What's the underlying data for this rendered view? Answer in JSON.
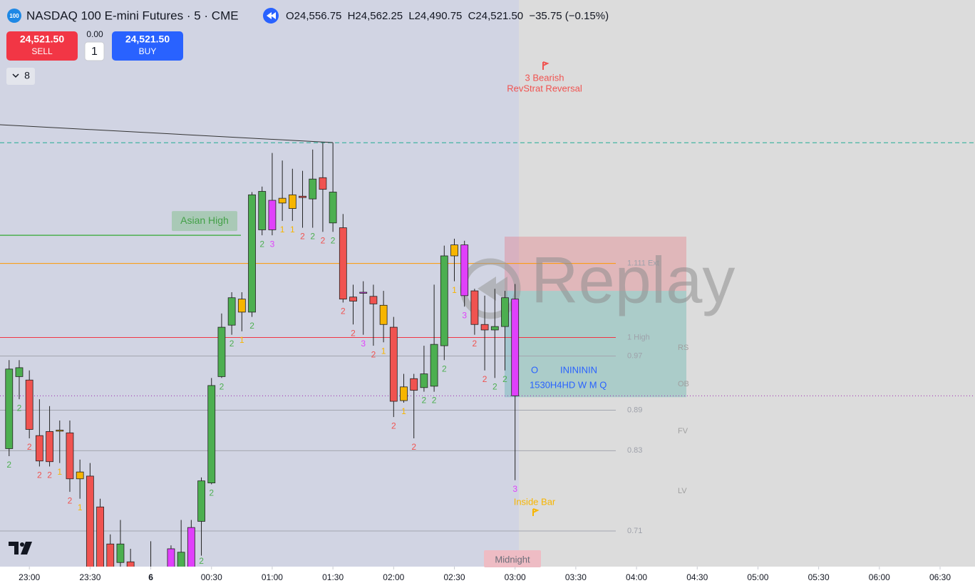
{
  "header": {
    "logo": "100",
    "title": "NASDAQ 100 E-mini Futures · 5 · CME",
    "ohlc": [
      {
        "key": "O",
        "value": "24,556.75"
      },
      {
        "key": "H",
        "value": "24,562.25"
      },
      {
        "key": "L",
        "value": "24,490.75"
      },
      {
        "key": "C",
        "value": "24,521.50"
      }
    ],
    "change": "−35.75 (−0.15%)"
  },
  "trade": {
    "sell_price": "24,521.50",
    "sell": "SELL",
    "spread": "0.00",
    "quantity": "1",
    "buy_price": "24,521.50",
    "buy": "BUY"
  },
  "indicators_count": "8",
  "watermark": "Replay",
  "chart_data": {
    "type": "candlestick",
    "open": [
      24502.25,
      24528.5,
      24527.25,
      24507.0,
      24508.5,
      24509.0,
      24508.0,
      24493.75,
      24492.25,
      24481.0,
      24467.5,
      24460.75,
      24461.0,
      24455.5,
      24452.75,
      24450.25,
      24458.0,
      24458.0,
      24458.0,
      24475.75,
      24489.75,
      24528.5,
      24547.25,
      24556.75,
      24552.0,
      24582.0,
      24592.75,
      24591.75,
      24589.75,
      24594.25,
      24593.25,
      24601.0,
      24584.5,
      24582.75,
      24557.5,
      24559.25,
      24557.75,
      24554.5,
      24546.5,
      24519.75,
      24527.75,
      24524.5,
      24525.0,
      24539.75,
      24572.5,
      24576.5,
      24559.75,
      24547.5,
      24545.5,
      24546.75,
      24556.75
    ],
    "high": [
      24534.5,
      24534.5,
      24530.75,
      24520.25,
      24517.75,
      24512.5,
      24512.5,
      24498.25,
      24497.0,
      24484.0,
      24471.0,
      24476.25,
      24465.75,
      24459.25,
      24468.5,
      24459.25,
      24467.0,
      24476.25,
      24476.25,
      24491.75,
      24528.0,
      24551.5,
      24559.25,
      24559.25,
      24595.75,
      24597.75,
      24610.0,
      24607.25,
      24604.25,
      24603.5,
      24611.25,
      24613.75,
      24613.75,
      24587.75,
      24562.0,
      24563.25,
      24562.0,
      24559.75,
      24550.25,
      24529.5,
      24529.5,
      24539.75,
      24562.0,
      24576.25,
      24578.75,
      24578.0,
      24560.5,
      24558.0,
      24560.5,
      24559.75,
      24562.25
    ],
    "low": [
      24499.5,
      24520.25,
      24506.0,
      24495.75,
      24495.75,
      24497.0,
      24486.5,
      24484.0,
      24455.5,
      24454.0,
      24454.0,
      24456.75,
      24455.5,
      24447.5,
      24450.25,
      24447.5,
      24456.0,
      24456.75,
      24456.75,
      24463.25,
      24489.25,
      24528.0,
      24543.75,
      24545.0,
      24550.25,
      24580.0,
      24580.0,
      24585.25,
      24585.25,
      24582.75,
      24582.75,
      24581.25,
      24581.25,
      24555.5,
      24547.5,
      24543.75,
      24539.75,
      24541.0,
      24513.75,
      24519.0,
      24506.0,
      24523.0,
      24523.0,
      24534.5,
      24563.25,
      24554.0,
      24543.75,
      24530.75,
      24528.0,
      24530.75,
      24490.75
    ],
    "close": [
      24531.25,
      24531.75,
      24509.25,
      24497.75,
      24497.5,
      24508.75,
      24491.25,
      24491.25,
      24458.0,
      24457.5,
      24456.75,
      24467.5,
      24457.0,
      24450.25,
      24455.5,
      24456.75,
      24465.75,
      24464.5,
      24473.5,
      24490.5,
      24525.25,
      24546.5,
      24557.25,
      24552.0,
      24594.75,
      24596.0,
      24582.0,
      24593.5,
      24594.75,
      24593.75,
      24600.5,
      24596.75,
      24595.75,
      24556.75,
      24556.0,
      24559.0,
      24555.0,
      24547.5,
      24519.5,
      24524.75,
      24523.5,
      24529.5,
      24540.25,
      24572.5,
      24576.5,
      24558.0,
      24547.5,
      24545.5,
      24546.75,
      24557.25,
      24521.5
    ],
    "colors": [
      "#4caf50",
      "#4caf50",
      "#f05350",
      "#f05350",
      "#f05350",
      "#f7b500",
      "#f05350",
      "#f7b500",
      "#f05350",
      "#f05350",
      "#f05350",
      "#4caf50",
      "#f05350",
      "#f05350",
      "#4caf50",
      "#4caf50",
      "#e040fb",
      "#4caf50",
      "#e040fb",
      "#4caf50",
      "#4caf50",
      "#4caf50",
      "#4caf50",
      "#f7b500",
      "#4caf50",
      "#4caf50",
      "#e040fb",
      "#f7b500",
      "#f7b500",
      "#f05350",
      "#4caf50",
      "#f05350",
      "#4caf50",
      "#f05350",
      "#f05350",
      "#e040fb",
      "#f05350",
      "#f7b500",
      "#f05350",
      "#f7b500",
      "#f05350",
      "#4caf50",
      "#4caf50",
      "#4caf50",
      "#f7b500",
      "#e040fb",
      "#f05350",
      "#f05350",
      "#4caf50",
      "#4caf50",
      "#e040fb"
    ],
    "strat_labels": [
      "2",
      "2",
      "2",
      "2",
      "2",
      "1",
      "2",
      "1",
      "2",
      null,
      null,
      null,
      null,
      null,
      null,
      null,
      null,
      null,
      null,
      "2",
      "2",
      "2",
      "2",
      "1",
      "2",
      "2",
      "3",
      "1",
      "1",
      "2",
      "2",
      "2",
      "2",
      "2",
      "2",
      "3",
      "2",
      "1",
      "2",
      "1",
      "2",
      "2",
      "2",
      "2",
      "1",
      "3",
      "2",
      "2",
      "2",
      "2",
      "3"
    ],
    "xlim": [
      -0.9,
      95.45
    ],
    "ylim": [
      24459.25,
      24665.75
    ],
    "xticks": [
      {
        "value": 2,
        "label": "23:00"
      },
      {
        "value": 8,
        "label": "23:30"
      },
      {
        "value": 14,
        "label": "6",
        "bold": true
      },
      {
        "value": 20,
        "label": "00:30"
      },
      {
        "value": 26,
        "label": "01:00"
      },
      {
        "value": 32,
        "label": "01:30"
      },
      {
        "value": 38,
        "label": "02:00"
      },
      {
        "value": 44,
        "label": "02:30"
      },
      {
        "value": 50,
        "label": "03:00"
      },
      {
        "value": 56,
        "label": "03:30"
      },
      {
        "value": 62,
        "label": "04:00"
      },
      {
        "value": 68,
        "label": "04:30"
      },
      {
        "value": 74,
        "label": "05:00"
      },
      {
        "value": 80,
        "label": "05:30"
      },
      {
        "value": 86,
        "label": "06:00"
      },
      {
        "value": 92,
        "label": "06:30"
      }
    ],
    "levels": [
      {
        "value": 24613.75,
        "color": "#22ab94",
        "dash": "6 4"
      },
      {
        "value": 24569.75,
        "color": "#ff9800",
        "label": "1.111 Ext"
      },
      {
        "value": 24542.75,
        "color": "#f23645",
        "label": "1 High"
      },
      {
        "value": 24536.0,
        "color": "#a3a6af",
        "label": "0.97"
      },
      {
        "value": 24521.5,
        "color": "#9c27b0",
        "dash": "1 3"
      },
      {
        "value": 24516.25,
        "color": "#a3a6af",
        "label": "0.89"
      },
      {
        "value": 24501.5,
        "color": "#a3a6af",
        "label": "0.83"
      },
      {
        "value": 24472.25,
        "color": "#a3a6af",
        "label": "0.71"
      }
    ],
    "zones": [
      {
        "low": 24559.75,
        "high": 24579.5,
        "color": "rgba(242,54,69,0.22)"
      },
      {
        "low": 24521.0,
        "high": 24559.75,
        "color": "rgba(0,150,136,0.22)"
      }
    ],
    "asian_high": {
      "value": 24580.0,
      "label": "Asian High",
      "color": "#4caf50"
    },
    "revstrat": [
      "3 Bearish",
      "RevStrat Reversal"
    ],
    "inside_bar": "Inside Bar",
    "midnight": "Midnight",
    "tf_row1": [
      "O",
      "ININININ"
    ],
    "tf_row2": "1530H4HD W M Q",
    "zone_labels": [
      "RS",
      "OB",
      "FV",
      "LV"
    ]
  }
}
